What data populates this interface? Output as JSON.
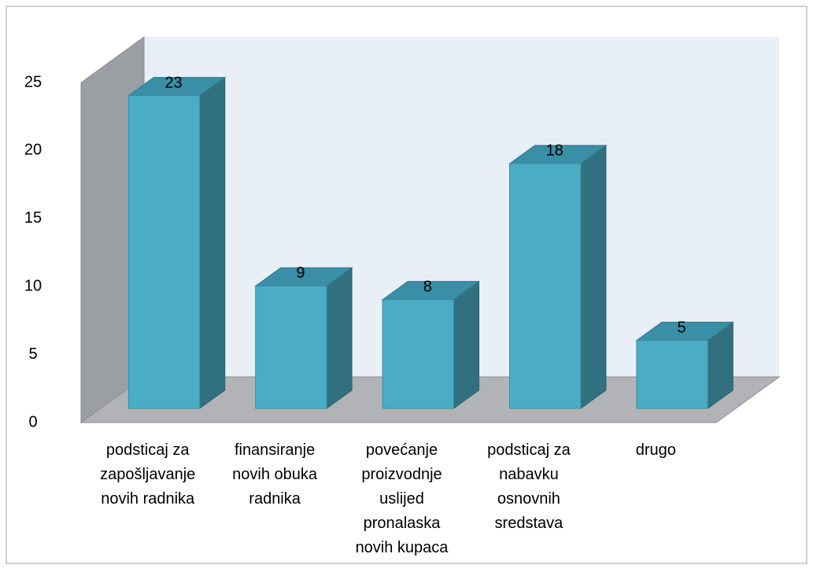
{
  "chart_data": {
    "type": "bar3d",
    "categories": [
      "podsticaj za zapošljavanje novih radnika",
      "finansiranje novih obuka radnika",
      "povećanje proizvodnje uslijed pronalaska novih kupaca",
      "podsticaj za nabavku osnovnih sredstava",
      "drugo"
    ],
    "values": [
      23,
      9,
      8,
      18,
      5
    ],
    "color": "#4bacc6",
    "ylim": [
      0,
      25
    ],
    "yticks": [
      0,
      5,
      10,
      15,
      20,
      25
    ]
  }
}
